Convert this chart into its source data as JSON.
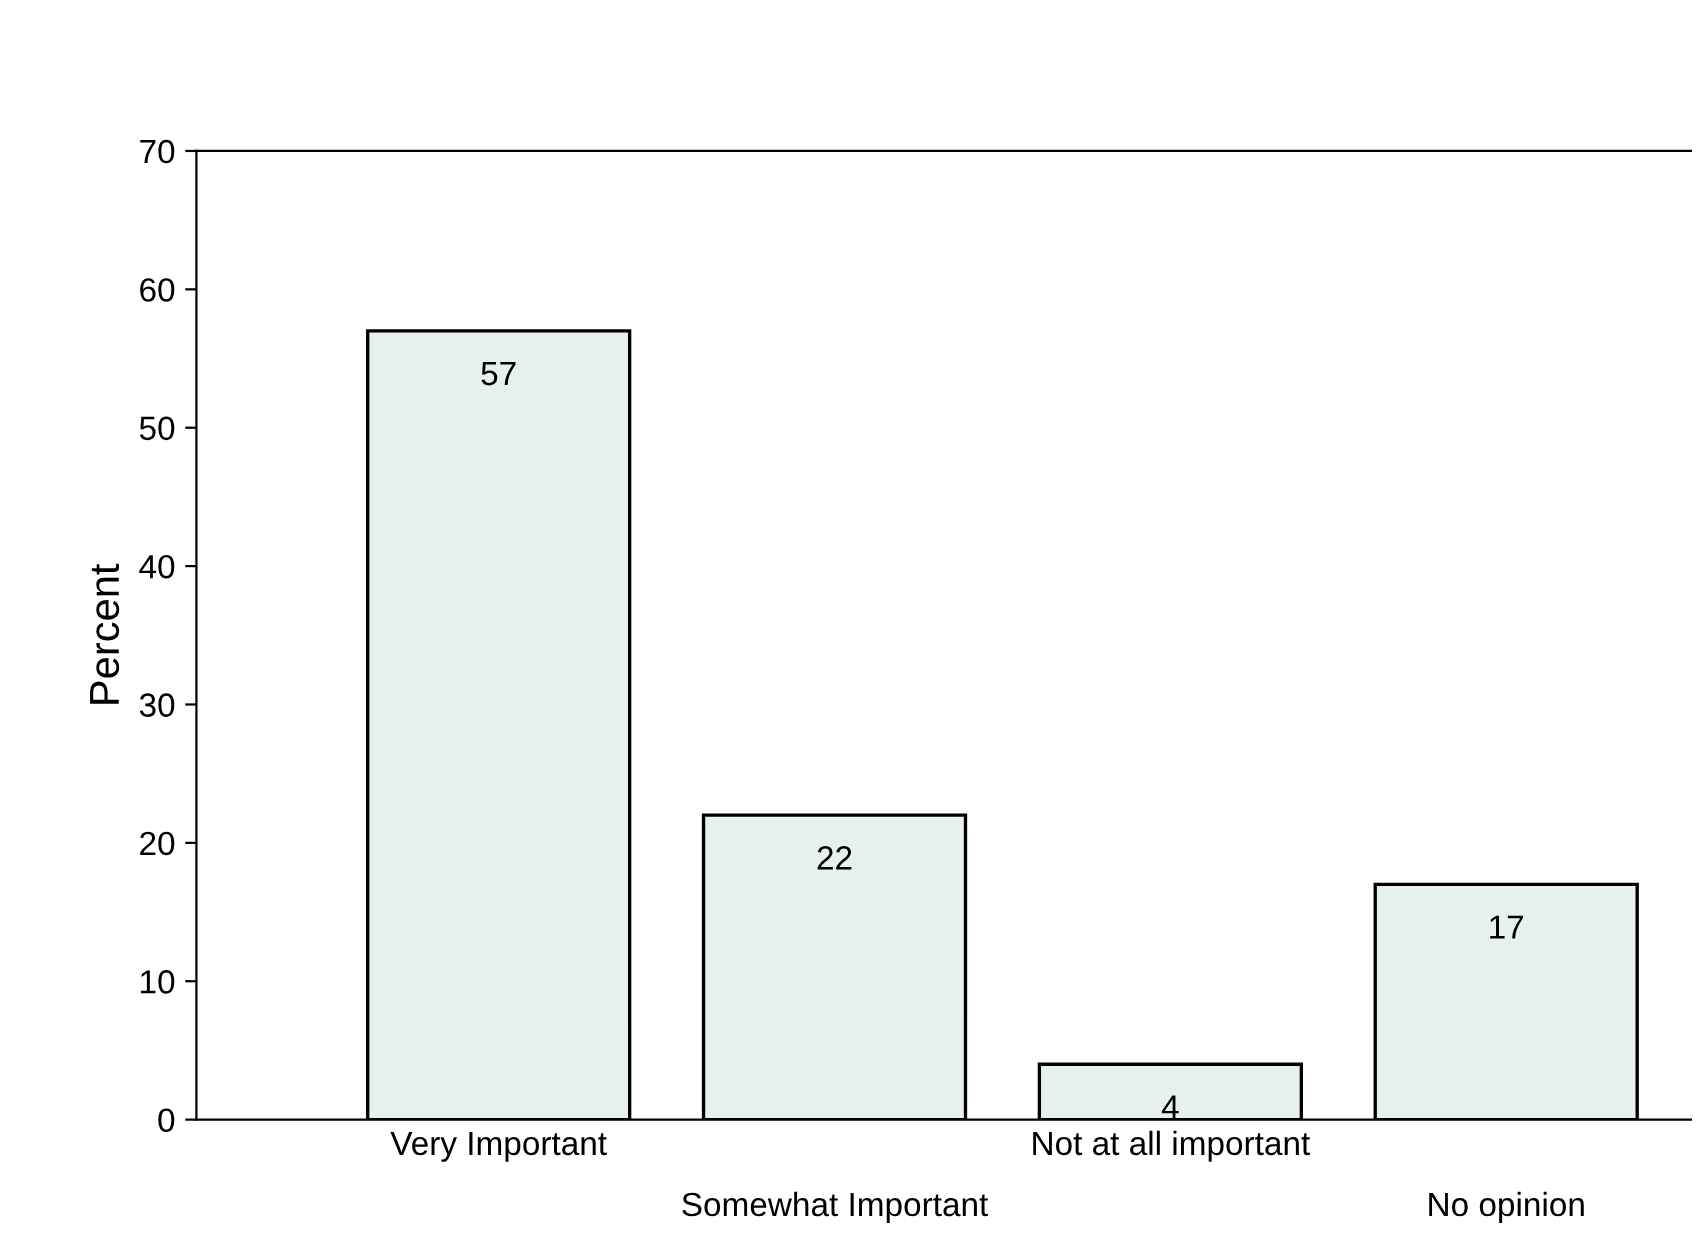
{
  "chart_data": {
    "type": "bar",
    "ylabel": "Percent",
    "categories": [
      "Very Important",
      "Somewhat Important",
      "Not at all important",
      "No opinion"
    ],
    "values": [
      57,
      22,
      4,
      17
    ],
    "color": "#e6f0ec",
    "ylim": [
      0,
      70
    ],
    "yticks": [
      0,
      10,
      20,
      30,
      40,
      50,
      60,
      70
    ],
    "grid": false,
    "data_labels": true,
    "legend": false
  }
}
